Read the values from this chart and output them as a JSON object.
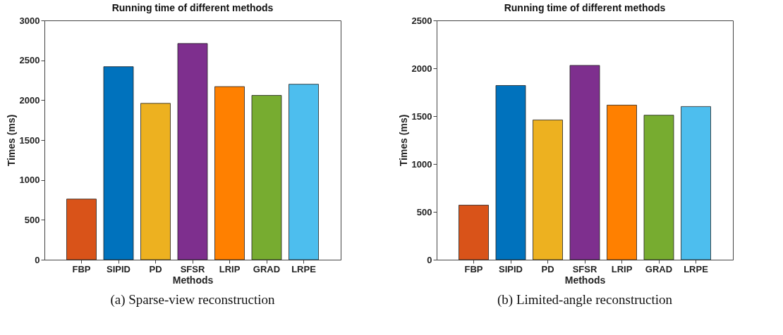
{
  "chart_data": [
    {
      "type": "bar",
      "title": "Running time of different methods",
      "xlabel": "Methods",
      "ylabel": "Times (ms)",
      "categories": [
        "FBP",
        "SIPID",
        "PD",
        "SFSR",
        "LRIP",
        "GRAD",
        "LRPE"
      ],
      "values": [
        760,
        2420,
        1960,
        2710,
        2170,
        2060,
        2200
      ],
      "colors": [
        "#d95319",
        "#0072bd",
        "#edb120",
        "#7e2f8e",
        "#ff8000",
        "#77ac30",
        "#4dbeee"
      ],
      "ylim": [
        0,
        3000
      ],
      "yticks": [
        0,
        500,
        1000,
        1500,
        2000,
        2500,
        3000
      ],
      "annotations": [
        "(a) Sparse-view reconstruction"
      ]
    },
    {
      "type": "bar",
      "title": "Running time of different methods",
      "xlabel": "Methods",
      "ylabel": "Times (ms)",
      "categories": [
        "FBP",
        "SIPID",
        "PD",
        "SFSR",
        "LRIP",
        "GRAD",
        "LRPE"
      ],
      "values": [
        570,
        1820,
        1460,
        2030,
        1615,
        1510,
        1600
      ],
      "colors": [
        "#d95319",
        "#0072bd",
        "#edb120",
        "#7e2f8e",
        "#ff8000",
        "#77ac30",
        "#4dbeee"
      ],
      "ylim": [
        0,
        2500
      ],
      "yticks": [
        0,
        500,
        1000,
        1500,
        2000,
        2500
      ],
      "annotations": [
        "(b) Limited-angle reconstruction"
      ]
    }
  ]
}
